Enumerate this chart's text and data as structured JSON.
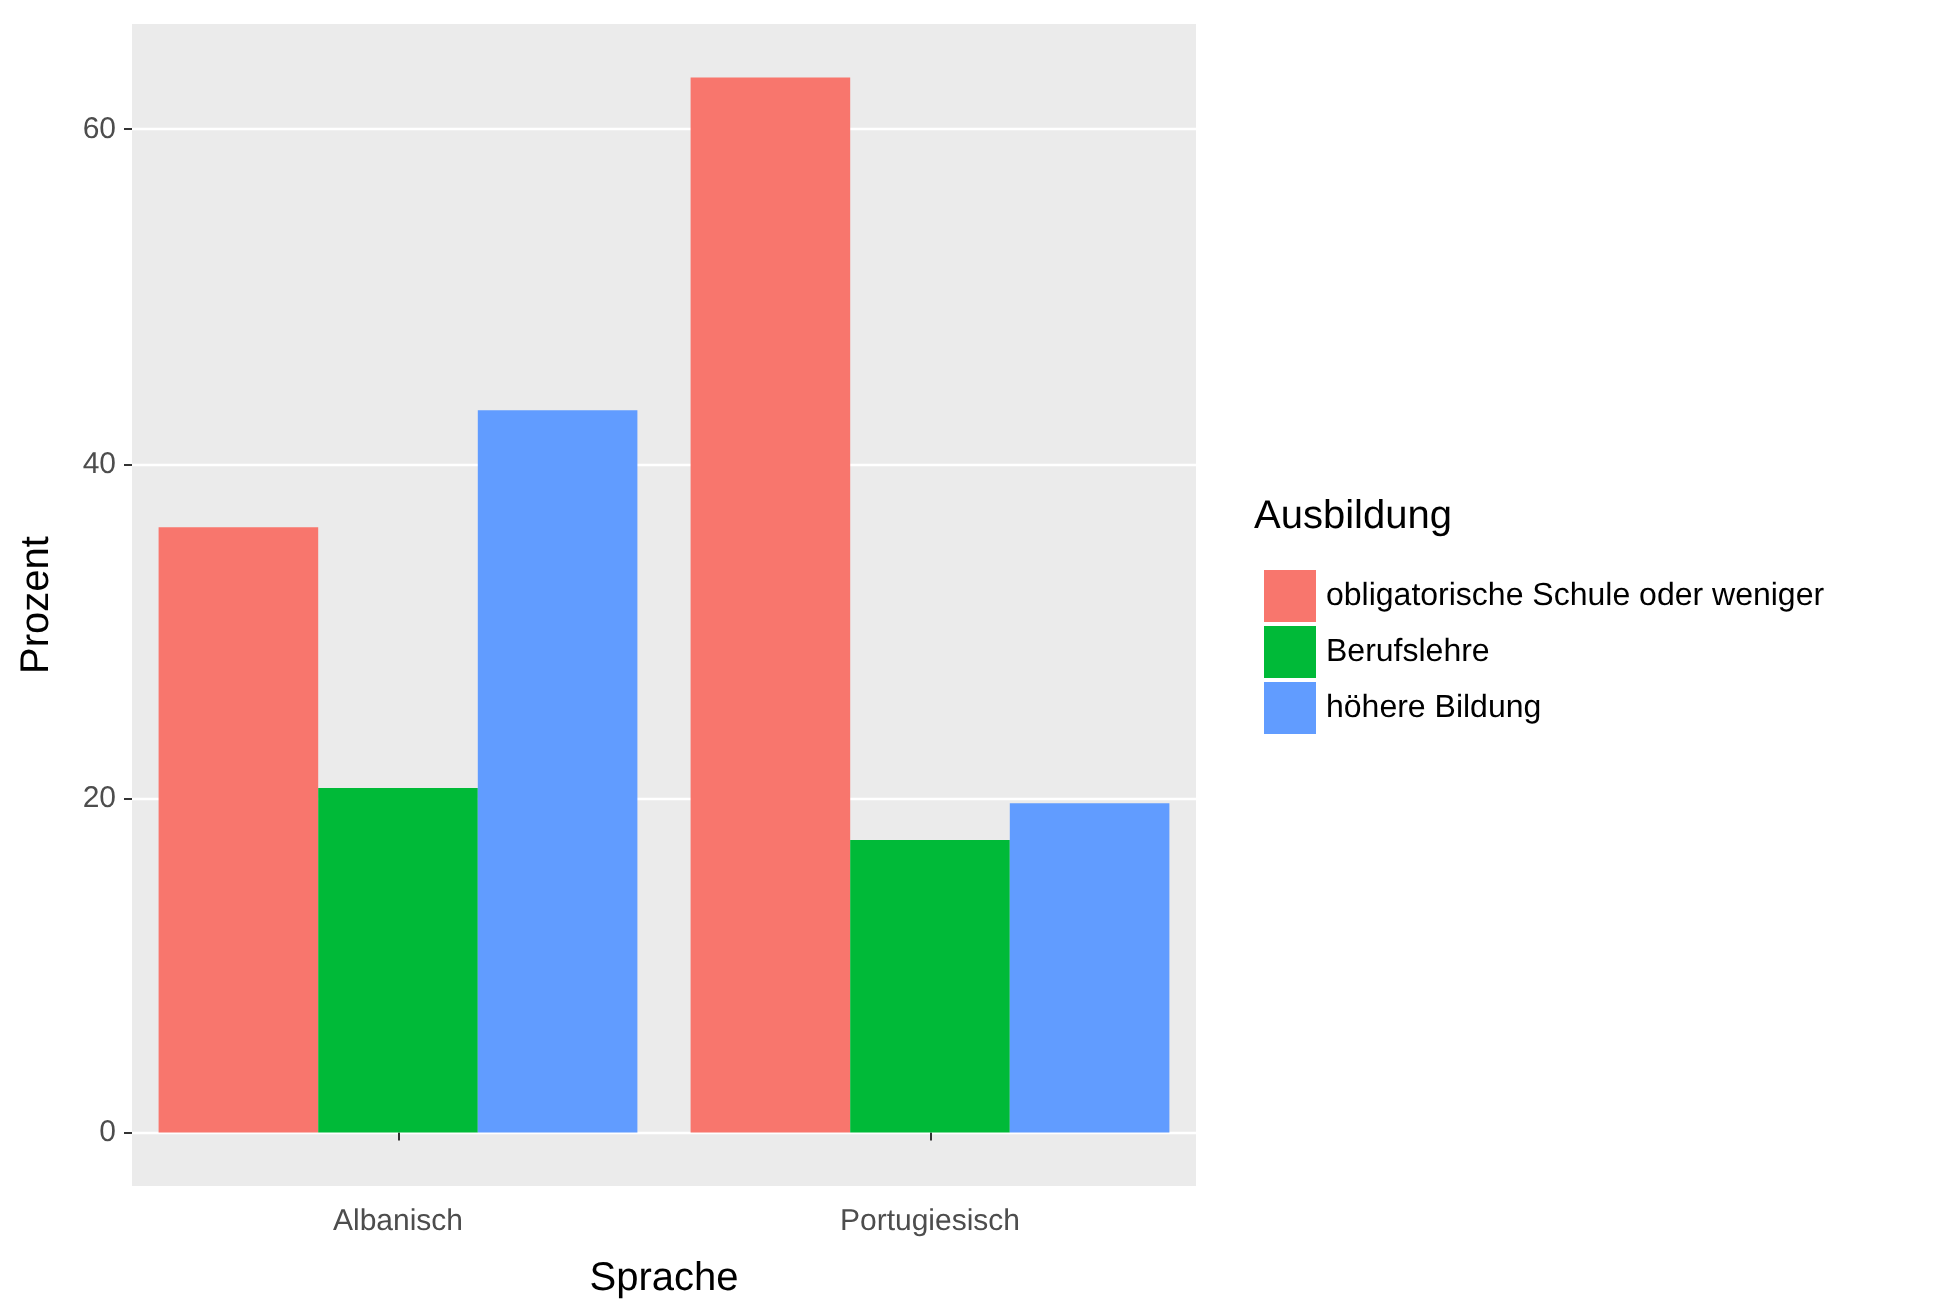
{
  "chart_data": {
    "type": "bar",
    "xlabel": "Sprache",
    "ylabel": "Prozent",
    "legend_title": "Ausbildung",
    "categories": [
      "Albanisch",
      "Portugiesisch"
    ],
    "series": [
      {
        "name": "obligatorische Schule oder weniger",
        "color": "#f8766d",
        "values": [
          36.2,
          63.1
        ]
      },
      {
        "name": "Berufslehre",
        "color": "#00ba38",
        "values": [
          20.6,
          17.5
        ]
      },
      {
        "name": "höhere Bildung",
        "color": "#619cff",
        "values": [
          43.2,
          19.7
        ]
      }
    ],
    "ylim": [
      -3.2,
      66.3
    ],
    "yticks": [
      0,
      20,
      40,
      60
    ],
    "grid": "y",
    "legend": "right"
  }
}
